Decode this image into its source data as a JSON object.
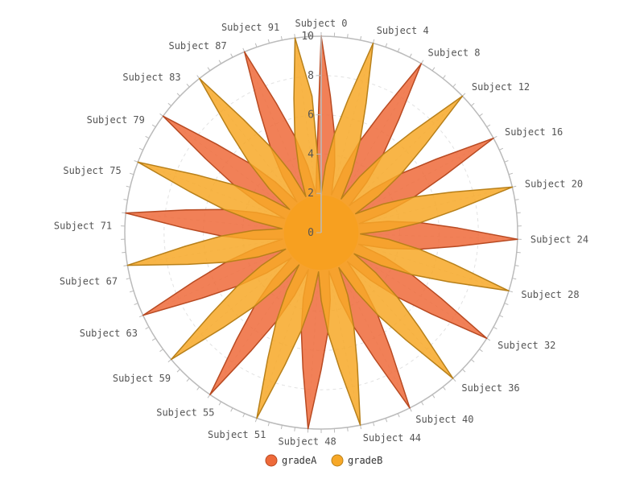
{
  "chart_data": {
    "type": "radar",
    "categories_count": 94,
    "category_prefix": "Subject ",
    "visible_axis_labels": [
      "Subject 0",
      "Subject 4",
      "Subject 8",
      "Subject 12",
      "Subject 16",
      "Subject 20",
      "Subject 24",
      "Subject 28",
      "Subject 32",
      "Subject 36",
      "Subject 40",
      "Subject 44",
      "Subject 48",
      "Subject 51",
      "Subject 55",
      "Subject 59",
      "Subject 63",
      "Subject 67",
      "Subject 71",
      "Subject 75",
      "Subject 79",
      "Subject 83",
      "Subject 87",
      "Subject 91"
    ],
    "radial_range": [
      0,
      10
    ],
    "radial_ticks": [
      "0",
      "2",
      "4",
      "6",
      "8",
      "10"
    ],
    "series": [
      {
        "name": "gradeA",
        "color": "#ee6a3a",
        "stroke": "#b84a22",
        "peak_value": 10,
        "peak_every": 8,
        "peak_start_index": 0,
        "trough_value": 2
      },
      {
        "name": "gradeB",
        "color": "#f7a827",
        "stroke": "#b8801a",
        "peak_value": 10,
        "peak_every": 8,
        "peak_start_index": 4,
        "trough_value": 2
      }
    ],
    "legend": {
      "position": "bottom",
      "items": [
        "gradeA",
        "gradeB"
      ]
    }
  }
}
